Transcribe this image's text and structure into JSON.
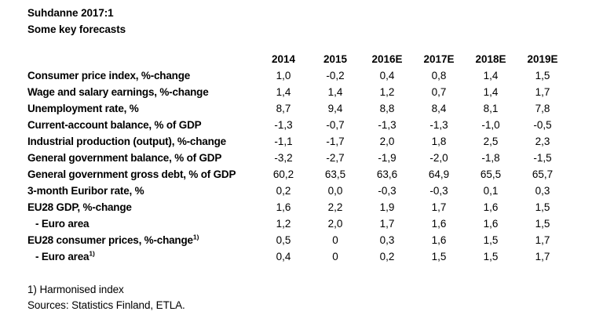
{
  "title": "Suhdanne 2017:1",
  "subtitle": "Some key forecasts",
  "chart_data": {
    "type": "table",
    "title": "Suhdanne 2017:1",
    "subtitle": "Some key forecasts",
    "columns": [
      "2014",
      "2015",
      "2016E",
      "2017E",
      "2018E",
      "2019E"
    ],
    "rows": [
      {
        "label": "Consumer price index, %-change",
        "sup": "",
        "values": [
          "1,0",
          "-0,2",
          "0,4",
          "0,8",
          "1,4",
          "1,5"
        ]
      },
      {
        "label": "Wage and salary earnings, %-change",
        "sup": "",
        "values": [
          "1,4",
          "1,4",
          "1,2",
          "0,7",
          "1,4",
          "1,7"
        ]
      },
      {
        "label": "Unemployment rate, %",
        "sup": "",
        "values": [
          "8,7",
          "9,4",
          "8,8",
          "8,4",
          "8,1",
          "7,8"
        ]
      },
      {
        "label": "Current-account balance, % of GDP",
        "sup": "",
        "values": [
          "-1,3",
          "-0,7",
          "-1,3",
          "-1,3",
          "-1,0",
          "-0,5"
        ]
      },
      {
        "label": "Industrial production (output), %-change",
        "sup": "",
        "values": [
          "-1,1",
          "-1,7",
          "2,0",
          "1,8",
          "2,5",
          "2,3"
        ]
      },
      {
        "label": "General government balance, % of GDP",
        "sup": "",
        "values": [
          "-3,2",
          "-2,7",
          "-1,9",
          "-2,0",
          "-1,8",
          "-1,5"
        ]
      },
      {
        "label": "General government gross debt, % of GDP",
        "sup": "",
        "values": [
          "60,2",
          "63,5",
          "63,6",
          "64,9",
          "65,5",
          "65,7"
        ]
      },
      {
        "label": "3-month Euribor rate, %",
        "sup": "",
        "values": [
          "0,2",
          "0,0",
          "-0,3",
          "-0,3",
          "0,1",
          "0,3"
        ]
      },
      {
        "label": "EU28 GDP, %-change",
        "sup": "",
        "values": [
          "1,6",
          "2,2",
          "1,9",
          "1,7",
          "1,6",
          "1,5"
        ]
      },
      {
        "label": "- Euro area",
        "sup": "",
        "values": [
          "1,2",
          "2,0",
          "1,7",
          "1,6",
          "1,6",
          "1,5"
        ]
      },
      {
        "label": "EU28 consumer prices, %-change",
        "sup": "1)",
        "values": [
          "0,5",
          "0",
          "0,3",
          "1,6",
          "1,5",
          "1,7"
        ]
      },
      {
        "label": "- Euro area",
        "sup": "1)",
        "values": [
          "0,4",
          "0",
          "0,2",
          "1,5",
          "1,5",
          "1,7"
        ]
      }
    ],
    "footnotes": [
      "1) Harmonised index",
      "Sources: Statistics Finland, ETLA."
    ],
    "text_color": "#000000",
    "background_color": "#ffffff"
  }
}
